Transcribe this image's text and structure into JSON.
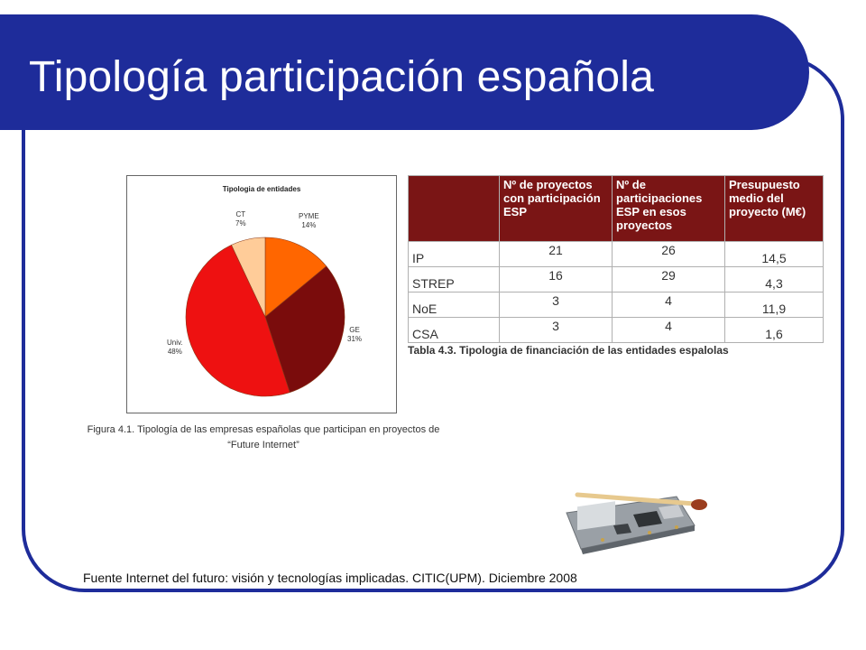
{
  "slide": {
    "title": "Tipología participación española",
    "source": "Fuente Internet del futuro: visión y tecnologías implicadas. CITIC(UPM). Diciembre 2008"
  },
  "colors": {
    "brand": "#1e2c9a",
    "table_header": "#7a1515"
  },
  "figure": {
    "caption_line1": "Figura 4.1. Tipología de las empresas españolas que participan en proyectos de",
    "caption_line2": "“Future Internet”"
  },
  "chart_data": {
    "type": "pie",
    "title": "Tipologia de entidades",
    "slices": [
      {
        "label": "PYME",
        "value": 14,
        "value_label": "14%",
        "color": "#ff6600"
      },
      {
        "label": "GE",
        "value": 31,
        "value_label": "31%",
        "color": "#7a0c0c"
      },
      {
        "label": "Univ.",
        "value": 48,
        "value_label": "48%",
        "color": "#ee1111"
      },
      {
        "label": "CT",
        "value": 7,
        "value_label": "7%",
        "color": "#ffcc99"
      }
    ]
  },
  "table": {
    "headers": [
      "",
      "Nº de proyectos con participación ESP",
      "Nº de participaciones ESP en esos proyectos",
      "Presupuesto medio del proyecto (M€)"
    ],
    "rows": [
      {
        "name": "IP",
        "projects": "21",
        "participations": "26",
        "budget": "14,5"
      },
      {
        "name": "STREP",
        "projects": "16",
        "participations": "29",
        "budget": "4,3"
      },
      {
        "name": "NoE",
        "projects": "3",
        "participations": "4",
        "budget": "11,9"
      },
      {
        "name": "CSA",
        "projects": "3",
        "participations": "4",
        "budget": "1,6"
      }
    ],
    "caption": "Tabla 4.3. Tipologia de financiación de las entidades espalolas"
  }
}
